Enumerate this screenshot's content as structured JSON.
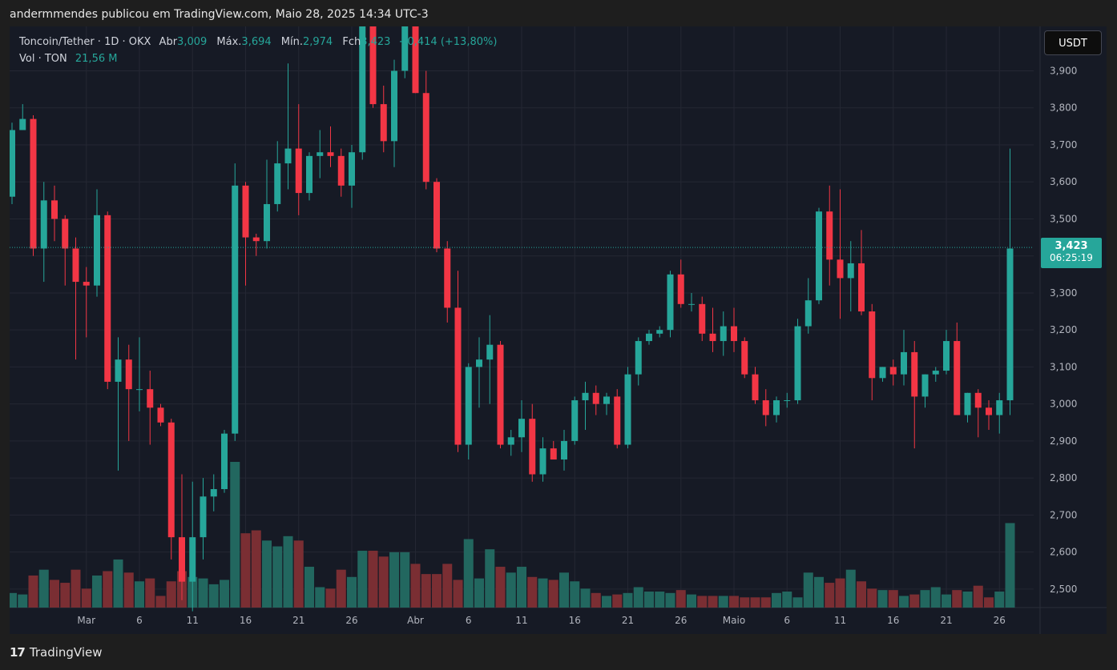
{
  "header": {
    "published_by": "andermmendes publicou em TradingView.com, Maio 28, 2025 14:34 UTC-3"
  },
  "legend": {
    "symbol": "Toncoin/Tether · 1D · OKX",
    "open_label": "Abr",
    "open_value": "3,009",
    "high_label": "Máx.",
    "high_value": "3,694",
    "low_label": "Mín.",
    "low_value": "2,974",
    "close_label": "Fch",
    "close_value": "3,423",
    "change": "+0,414 (+13,80%)",
    "volume_label": "Vol · TON",
    "volume_value": "21,56 M"
  },
  "currency_button": "USDT",
  "price_tag": {
    "price": "3,423",
    "countdown": "06:25:19"
  },
  "branding": {
    "logo_mark": "17",
    "name": "TradingView"
  },
  "colors": {
    "up": "#26a69a",
    "down": "#f23645",
    "up_volume": "#22675f",
    "down_volume": "#7a2e33",
    "background": "#161a25",
    "grid": "#242733"
  },
  "chart_data": {
    "type": "candlestick",
    "timeframe": "1D",
    "y_ticks": [
      "2,500",
      "2,600",
      "2,700",
      "2,800",
      "2,900",
      "3,000",
      "3,100",
      "3,200",
      "3,300",
      "3,400",
      "3,500",
      "3,600",
      "3,700",
      "3,800",
      "3,900"
    ],
    "ylim": [
      2.45,
      4.02
    ],
    "x_tick_labels": [
      {
        "label": "Mar",
        "index": 7
      },
      {
        "label": "6",
        "index": 12
      },
      {
        "label": "11",
        "index": 17
      },
      {
        "label": "16",
        "index": 22
      },
      {
        "label": "21",
        "index": 27
      },
      {
        "label": "26",
        "index": 32
      },
      {
        "label": "Abr",
        "index": 38
      },
      {
        "label": "6",
        "index": 43
      },
      {
        "label": "11",
        "index": 48
      },
      {
        "label": "16",
        "index": 53
      },
      {
        "label": "21",
        "index": 58
      },
      {
        "label": "26",
        "index": 63
      },
      {
        "label": "Maio",
        "index": 68
      },
      {
        "label": "6",
        "index": 73
      },
      {
        "label": "11",
        "index": 78
      },
      {
        "label": "16",
        "index": 83
      },
      {
        "label": "21",
        "index": 88
      },
      {
        "label": "26",
        "index": 93
      }
    ],
    "last_price": 3.423,
    "candles": [
      {
        "o": 3.56,
        "h": 3.76,
        "l": 3.54,
        "c": 3.74,
        "v": 0.1
      },
      {
        "o": 3.74,
        "h": 3.81,
        "l": 3.74,
        "c": 3.77,
        "v": 0.09
      },
      {
        "o": 3.77,
        "h": 3.78,
        "l": 3.4,
        "c": 3.42,
        "v": 0.22
      },
      {
        "o": 3.42,
        "h": 3.6,
        "l": 3.33,
        "c": 3.55,
        "v": 0.26
      },
      {
        "o": 3.55,
        "h": 3.59,
        "l": 3.44,
        "c": 3.5,
        "v": 0.19
      },
      {
        "o": 3.5,
        "h": 3.51,
        "l": 3.32,
        "c": 3.42,
        "v": 0.17
      },
      {
        "o": 3.42,
        "h": 3.45,
        "l": 3.12,
        "c": 3.33,
        "v": 0.26
      },
      {
        "o": 3.33,
        "h": 3.37,
        "l": 3.18,
        "c": 3.32,
        "v": 0.13
      },
      {
        "o": 3.32,
        "h": 3.58,
        "l": 3.29,
        "c": 3.51,
        "v": 0.22
      },
      {
        "o": 3.51,
        "h": 3.52,
        "l": 3.04,
        "c": 3.06,
        "v": 0.25
      },
      {
        "o": 3.06,
        "h": 3.18,
        "l": 2.82,
        "c": 3.12,
        "v": 0.33
      },
      {
        "o": 3.12,
        "h": 3.16,
        "l": 2.9,
        "c": 3.04,
        "v": 0.24
      },
      {
        "o": 3.04,
        "h": 3.18,
        "l": 2.98,
        "c": 3.04,
        "v": 0.18
      },
      {
        "o": 3.04,
        "h": 3.09,
        "l": 2.89,
        "c": 2.99,
        "v": 0.2
      },
      {
        "o": 2.99,
        "h": 3.0,
        "l": 2.94,
        "c": 2.95,
        "v": 0.08
      },
      {
        "o": 2.95,
        "h": 2.96,
        "l": 2.58,
        "c": 2.64,
        "v": 0.18
      },
      {
        "o": 2.64,
        "h": 2.81,
        "l": 2.47,
        "c": 2.52,
        "v": 0.25
      },
      {
        "o": 2.52,
        "h": 2.79,
        "l": 2.44,
        "c": 2.64,
        "v": 0.21
      },
      {
        "o": 2.64,
        "h": 2.8,
        "l": 2.58,
        "c": 2.75,
        "v": 0.2
      },
      {
        "o": 2.75,
        "h": 2.81,
        "l": 2.71,
        "c": 2.77,
        "v": 0.16
      },
      {
        "o": 2.77,
        "h": 2.93,
        "l": 2.76,
        "c": 2.92,
        "v": 0.19
      },
      {
        "o": 2.92,
        "h": 3.65,
        "l": 2.9,
        "c": 3.59,
        "v": 1.0
      },
      {
        "o": 3.59,
        "h": 3.6,
        "l": 3.32,
        "c": 3.45,
        "v": 0.51
      },
      {
        "o": 3.45,
        "h": 3.46,
        "l": 3.4,
        "c": 3.44,
        "v": 0.53
      },
      {
        "o": 3.44,
        "h": 3.66,
        "l": 3.42,
        "c": 3.54,
        "v": 0.46
      },
      {
        "o": 3.54,
        "h": 3.71,
        "l": 3.52,
        "c": 3.65,
        "v": 0.42
      },
      {
        "o": 3.65,
        "h": 3.92,
        "l": 3.58,
        "c": 3.69,
        "v": 0.49
      },
      {
        "o": 3.69,
        "h": 3.81,
        "l": 3.51,
        "c": 3.57,
        "v": 0.46
      },
      {
        "o": 3.57,
        "h": 3.68,
        "l": 3.55,
        "c": 3.67,
        "v": 0.28
      },
      {
        "o": 3.67,
        "h": 3.74,
        "l": 3.61,
        "c": 3.68,
        "v": 0.14
      },
      {
        "o": 3.68,
        "h": 3.75,
        "l": 3.64,
        "c": 3.67,
        "v": 0.13
      },
      {
        "o": 3.67,
        "h": 3.69,
        "l": 3.56,
        "c": 3.59,
        "v": 0.26
      },
      {
        "o": 3.59,
        "h": 3.7,
        "l": 3.53,
        "c": 3.68,
        "v": 0.21
      },
      {
        "o": 3.68,
        "h": 4.1,
        "l": 3.66,
        "c": 4.02,
        "v": 0.39
      },
      {
        "o": 4.02,
        "h": 4.08,
        "l": 3.8,
        "c": 3.81,
        "v": 0.39
      },
      {
        "o": 3.81,
        "h": 3.86,
        "l": 3.68,
        "c": 3.71,
        "v": 0.35
      },
      {
        "o": 3.71,
        "h": 3.93,
        "l": 3.64,
        "c": 3.9,
        "v": 0.38
      },
      {
        "o": 3.9,
        "h": 4.1,
        "l": 3.88,
        "c": 4.05,
        "v": 0.38
      },
      {
        "o": 4.05,
        "h": 4.1,
        "l": 3.84,
        "c": 3.84,
        "v": 0.3
      },
      {
        "o": 3.84,
        "h": 3.9,
        "l": 3.58,
        "c": 3.6,
        "v": 0.23
      },
      {
        "o": 3.6,
        "h": 3.61,
        "l": 3.41,
        "c": 3.42,
        "v": 0.23
      },
      {
        "o": 3.42,
        "h": 3.44,
        "l": 3.22,
        "c": 3.26,
        "v": 0.3
      },
      {
        "o": 3.26,
        "h": 3.36,
        "l": 2.87,
        "c": 2.89,
        "v": 0.19
      },
      {
        "o": 2.89,
        "h": 3.11,
        "l": 2.85,
        "c": 3.1,
        "v": 0.47
      },
      {
        "o": 3.1,
        "h": 3.18,
        "l": 2.99,
        "c": 3.12,
        "v": 0.2
      },
      {
        "o": 3.12,
        "h": 3.24,
        "l": 3.0,
        "c": 3.16,
        "v": 0.4
      },
      {
        "o": 3.16,
        "h": 3.17,
        "l": 2.88,
        "c": 2.89,
        "v": 0.28
      },
      {
        "o": 2.89,
        "h": 2.93,
        "l": 2.86,
        "c": 2.91,
        "v": 0.24
      },
      {
        "o": 2.91,
        "h": 3.01,
        "l": 2.87,
        "c": 2.96,
        "v": 0.28
      },
      {
        "o": 2.96,
        "h": 3.0,
        "l": 2.79,
        "c": 2.81,
        "v": 0.21
      },
      {
        "o": 2.81,
        "h": 2.91,
        "l": 2.79,
        "c": 2.88,
        "v": 0.2
      },
      {
        "o": 2.88,
        "h": 2.9,
        "l": 2.86,
        "c": 2.85,
        "v": 0.19
      },
      {
        "o": 2.85,
        "h": 2.93,
        "l": 2.82,
        "c": 2.9,
        "v": 0.24
      },
      {
        "o": 2.9,
        "h": 3.02,
        "l": 2.89,
        "c": 3.01,
        "v": 0.18
      },
      {
        "o": 3.01,
        "h": 3.06,
        "l": 2.93,
        "c": 3.03,
        "v": 0.13
      },
      {
        "o": 3.03,
        "h": 3.05,
        "l": 2.97,
        "c": 3.0,
        "v": 0.1
      },
      {
        "o": 3.0,
        "h": 3.03,
        "l": 2.97,
        "c": 3.02,
        "v": 0.08
      },
      {
        "o": 3.02,
        "h": 3.04,
        "l": 2.88,
        "c": 2.89,
        "v": 0.09
      },
      {
        "o": 2.89,
        "h": 3.1,
        "l": 2.88,
        "c": 3.08,
        "v": 0.1
      },
      {
        "o": 3.08,
        "h": 3.18,
        "l": 3.05,
        "c": 3.17,
        "v": 0.14
      },
      {
        "o": 3.17,
        "h": 3.2,
        "l": 3.16,
        "c": 3.19,
        "v": 0.11
      },
      {
        "o": 3.19,
        "h": 3.21,
        "l": 3.18,
        "c": 3.2,
        "v": 0.11
      },
      {
        "o": 3.2,
        "h": 3.36,
        "l": 3.18,
        "c": 3.35,
        "v": 0.1
      },
      {
        "o": 3.35,
        "h": 3.39,
        "l": 3.26,
        "c": 3.27,
        "v": 0.12
      },
      {
        "o": 3.27,
        "h": 3.3,
        "l": 3.25,
        "c": 3.27,
        "v": 0.09
      },
      {
        "o": 3.27,
        "h": 3.29,
        "l": 3.17,
        "c": 3.19,
        "v": 0.08
      },
      {
        "o": 3.19,
        "h": 3.26,
        "l": 3.14,
        "c": 3.17,
        "v": 0.08
      },
      {
        "o": 3.17,
        "h": 3.25,
        "l": 3.13,
        "c": 3.21,
        "v": 0.08
      },
      {
        "o": 3.21,
        "h": 3.26,
        "l": 3.14,
        "c": 3.17,
        "v": 0.08
      },
      {
        "o": 3.17,
        "h": 3.18,
        "l": 3.07,
        "c": 3.08,
        "v": 0.07
      },
      {
        "o": 3.08,
        "h": 3.1,
        "l": 3.0,
        "c": 3.01,
        "v": 0.07
      },
      {
        "o": 3.01,
        "h": 3.04,
        "l": 2.94,
        "c": 2.97,
        "v": 0.07
      },
      {
        "o": 2.97,
        "h": 3.02,
        "l": 2.95,
        "c": 3.01,
        "v": 0.1
      },
      {
        "o": 3.01,
        "h": 3.03,
        "l": 2.99,
        "c": 3.01,
        "v": 0.11
      },
      {
        "o": 3.01,
        "h": 3.23,
        "l": 3.0,
        "c": 3.21,
        "v": 0.07
      },
      {
        "o": 3.21,
        "h": 3.34,
        "l": 3.19,
        "c": 3.28,
        "v": 0.24
      },
      {
        "o": 3.28,
        "h": 3.53,
        "l": 3.27,
        "c": 3.52,
        "v": 0.21
      },
      {
        "o": 3.52,
        "h": 3.59,
        "l": 3.32,
        "c": 3.39,
        "v": 0.17
      },
      {
        "o": 3.39,
        "h": 3.58,
        "l": 3.23,
        "c": 3.34,
        "v": 0.2
      },
      {
        "o": 3.34,
        "h": 3.44,
        "l": 3.25,
        "c": 3.38,
        "v": 0.26
      },
      {
        "o": 3.38,
        "h": 3.47,
        "l": 3.24,
        "c": 3.25,
        "v": 0.18
      },
      {
        "o": 3.25,
        "h": 3.27,
        "l": 3.01,
        "c": 3.07,
        "v": 0.13
      },
      {
        "o": 3.07,
        "h": 3.1,
        "l": 3.06,
        "c": 3.1,
        "v": 0.12
      },
      {
        "o": 3.1,
        "h": 3.12,
        "l": 3.05,
        "c": 3.08,
        "v": 0.12
      },
      {
        "o": 3.08,
        "h": 3.2,
        "l": 3.05,
        "c": 3.14,
        "v": 0.08
      },
      {
        "o": 3.14,
        "h": 3.17,
        "l": 2.88,
        "c": 3.02,
        "v": 0.09
      },
      {
        "o": 3.02,
        "h": 3.08,
        "l": 2.99,
        "c": 3.08,
        "v": 0.12
      },
      {
        "o": 3.08,
        "h": 3.1,
        "l": 3.06,
        "c": 3.09,
        "v": 0.14
      },
      {
        "o": 3.09,
        "h": 3.2,
        "l": 3.08,
        "c": 3.17,
        "v": 0.09
      },
      {
        "o": 3.17,
        "h": 3.22,
        "l": 2.97,
        "c": 2.97,
        "v": 0.12
      },
      {
        "o": 2.97,
        "h": 3.03,
        "l": 2.95,
        "c": 3.03,
        "v": 0.11
      },
      {
        "o": 3.03,
        "h": 3.04,
        "l": 2.91,
        "c": 2.99,
        "v": 0.15
      },
      {
        "o": 2.99,
        "h": 3.01,
        "l": 2.93,
        "c": 2.97,
        "v": 0.07
      },
      {
        "o": 2.97,
        "h": 3.03,
        "l": 2.92,
        "c": 3.01,
        "v": 0.11
      },
      {
        "o": 3.01,
        "h": 3.69,
        "l": 2.97,
        "c": 3.42,
        "v": 0.58
      }
    ]
  }
}
